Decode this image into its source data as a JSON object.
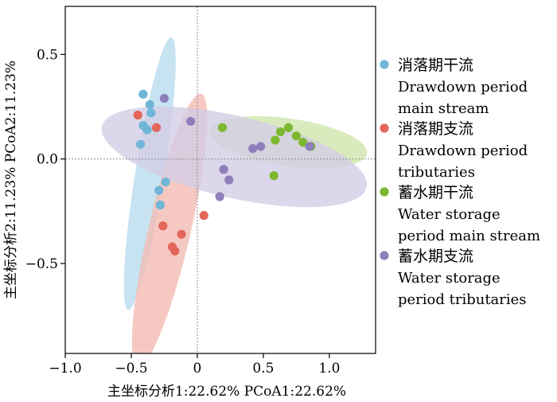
{
  "chart_data": {
    "type": "scatter",
    "title": "",
    "xlabel": "主坐标分析1:22.62% PCoA1:22.62%",
    "ylabel": "主坐标分析2:11.23% PCoA2:11.23%",
    "xlim": [
      -1.0,
      1.35
    ],
    "ylim": [
      -0.93,
      0.73
    ],
    "x_ticks": [
      -1.0,
      -0.5,
      0.0,
      0.5,
      1.0
    ],
    "x_tick_labels": [
      "−1.0",
      "−0.5",
      "0",
      "0.5",
      "1.0"
    ],
    "y_ticks": [
      0.5,
      0.0,
      -0.5
    ],
    "y_tick_labels": [
      "0.5",
      "0.0",
      "−0.5"
    ],
    "reference_lines": {
      "x": 0,
      "y": 0
    },
    "legend_position": "right",
    "series": [
      {
        "name_zh": "消落期干流",
        "name_en_lines": [
          "Drawdown period",
          "main stream"
        ],
        "color": "#6fb6d6",
        "ellipse_color": "#b9dcef",
        "ellipse": {
          "cx": -0.36,
          "cy": -0.07,
          "rx": 0.66,
          "ry": 0.11,
          "angle_deg": 81
        },
        "points": [
          [
            -0.41,
            0.31
          ],
          [
            -0.36,
            0.26
          ],
          [
            -0.41,
            0.16
          ],
          [
            -0.35,
            0.22
          ],
          [
            -0.38,
            0.14
          ],
          [
            -0.43,
            0.07
          ],
          [
            -0.24,
            -0.11
          ],
          [
            -0.29,
            -0.15
          ],
          [
            -0.28,
            -0.22
          ]
        ]
      },
      {
        "name_zh": "消落期支流",
        "name_en_lines": [
          "Drawdown period",
          "tributaries"
        ],
        "color": "#e2675a",
        "ellipse_color": "#f3bcb3",
        "ellipse": {
          "cx": -0.21,
          "cy": -0.34,
          "rx": 0.67,
          "ry": 0.16,
          "angle_deg": 77
        },
        "points": [
          [
            -0.45,
            0.21
          ],
          [
            -0.31,
            0.15
          ],
          [
            -0.26,
            -0.32
          ],
          [
            -0.19,
            -0.42
          ],
          [
            -0.17,
            -0.44
          ],
          [
            -0.12,
            -0.36
          ],
          [
            0.05,
            -0.27
          ]
        ]
      },
      {
        "name_zh": "蓄水期干流",
        "name_en_lines": [
          "Water storage",
          "period main stream"
        ],
        "color": "#7cb82f",
        "ellipse_color": "#cfe6ab",
        "ellipse": {
          "cx": 0.69,
          "cy": 0.08,
          "rx": 0.38,
          "ry": 0.18,
          "angle_deg": -8
        },
        "points": [
          [
            0.19,
            0.15
          ],
          [
            0.63,
            0.13
          ],
          [
            0.69,
            0.15
          ],
          [
            0.75,
            0.11
          ],
          [
            0.8,
            0.08
          ],
          [
            0.86,
            0.06
          ],
          [
            0.59,
            0.09
          ],
          [
            0.58,
            -0.08
          ]
        ]
      },
      {
        "name_zh": "蓄水期支流",
        "name_en_lines": [
          "Water storage",
          "period tributaries"
        ],
        "color": "#8e7fbb",
        "ellipse_color": "#d3cde5",
        "ellipse": {
          "cx": 0.28,
          "cy": 0.01,
          "rx": 0.65,
          "ry": 0.31,
          "angle_deg": -13
        },
        "points": [
          [
            -0.25,
            0.29
          ],
          [
            -0.05,
            0.18
          ],
          [
            0.48,
            0.06
          ],
          [
            0.42,
            0.05
          ],
          [
            0.85,
            0.06
          ],
          [
            0.2,
            -0.05
          ],
          [
            0.24,
            -0.1
          ],
          [
            0.17,
            -0.18
          ]
        ]
      }
    ]
  }
}
